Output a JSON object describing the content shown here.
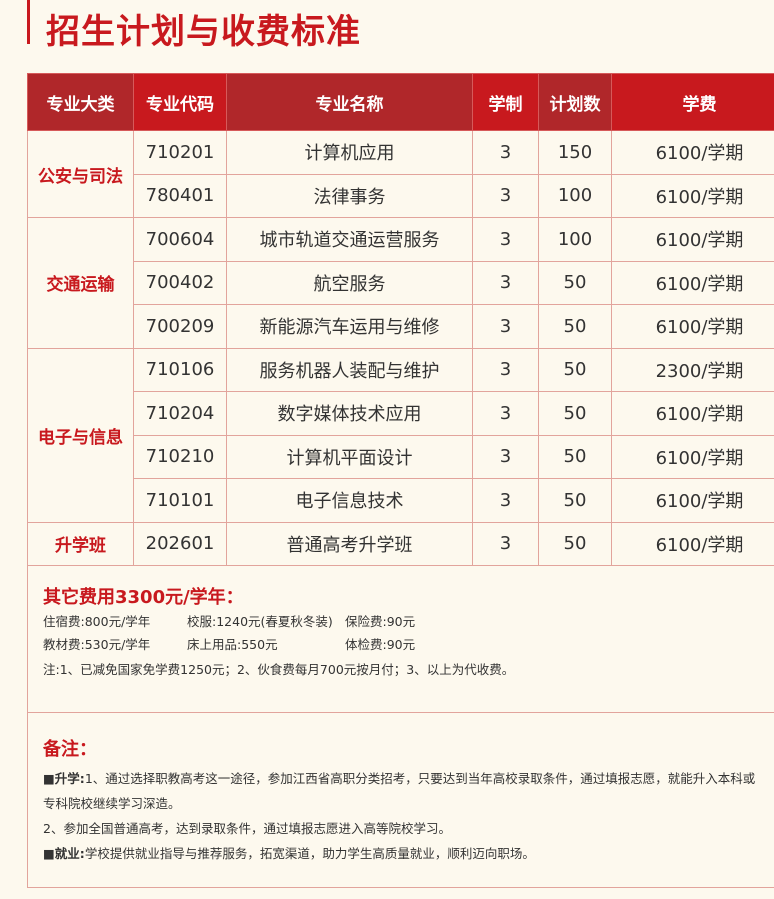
{
  "title": "招生计划与收费标准",
  "headers": [
    "专业大类",
    "专业代码",
    "专业名称",
    "学制",
    "计划数",
    "学费"
  ],
  "groups": [
    {
      "category": "公安与司法",
      "rows": [
        [
          "710201",
          "计算机应用",
          "3",
          "150",
          "6100/学期"
        ],
        [
          "780401",
          "法律事务",
          "3",
          "100",
          "6100/学期"
        ]
      ]
    },
    {
      "category": "交通运输",
      "rows": [
        [
          "700604",
          "城市轨道交通运营服务",
          "3",
          "100",
          "6100/学期"
        ],
        [
          "700402",
          "航空服务",
          "3",
          "50",
          "6100/学期"
        ],
        [
          "700209",
          "新能源汽车运用与维修",
          "3",
          "50",
          "6100/学期"
        ]
      ]
    },
    {
      "category": "电子与信息",
      "rows": [
        [
          "710106",
          "服务机器人装配与维护",
          "3",
          "50",
          "2300/学期"
        ],
        [
          "710204",
          "数字媒体技术应用",
          "3",
          "50",
          "6100/学期"
        ],
        [
          "710210",
          "计算机平面设计",
          "3",
          "50",
          "6100/学期"
        ],
        [
          "710101",
          "电子信息技术",
          "3",
          "50",
          "6100/学期"
        ]
      ]
    },
    {
      "category": "升学班",
      "rows": [
        [
          "202601",
          "普通高考升学班",
          "3",
          "50",
          "6100/学期"
        ]
      ]
    }
  ],
  "fees": {
    "heading": "其它费用3300元/学年：",
    "items": [
      "住宿费:800元/学年",
      "校服:1240元(春夏秋冬装)",
      "保险费:90元",
      "教材费:530元/学年",
      "床上用品:550元",
      "体检费:90元"
    ],
    "note": "注:1、已减免国家免学费1250元；2、伙食费每月700元按月付；3、以上为代收费。"
  },
  "notes": {
    "heading": "备注：",
    "lines": [
      {
        "label": "■升学:",
        "text": "1、通过选择职教高考这一途径，参加江西省高职分类招考，只要达到当年高校录取条件，通过填报志愿，就能升入本科或专科院校继续学习深造。"
      },
      {
        "label": "",
        "text": "2、参加全国普通高考，达到录取条件，通过填报志愿进入高等院校学习。"
      },
      {
        "label": "■就业:",
        "text": "学校提供就业指导与推荐服务，拓宽渠道，助力学生高质量就业，顺利迈向职场。"
      }
    ]
  }
}
